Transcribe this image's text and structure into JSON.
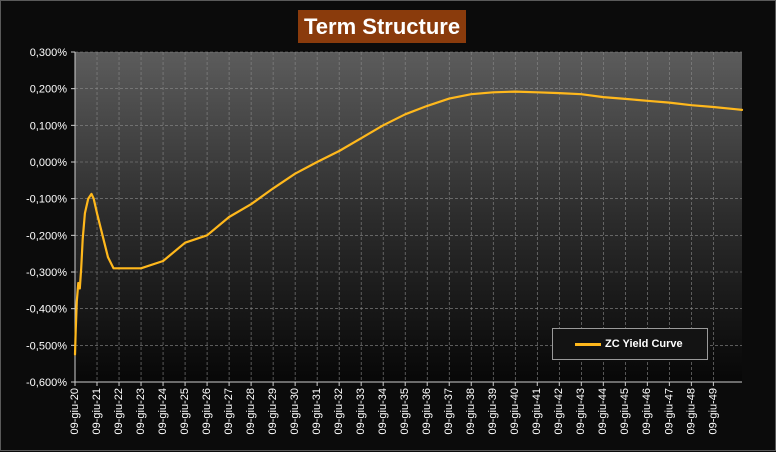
{
  "chart_data": {
    "type": "line",
    "title": "Term Structure",
    "y_ticks": [
      "0,300%",
      "0,200%",
      "0,100%",
      "0,000%",
      "-0,100%",
      "-0,200%",
      "-0,300%",
      "-0,400%",
      "-0,500%",
      "-0,600%"
    ],
    "ylim": [
      -0.6,
      0.3
    ],
    "x_ticks": [
      "09-giu-20",
      "09-giu-21",
      "09-giu-22",
      "09-giu-23",
      "09-giu-24",
      "09-giu-25",
      "09-giu-26",
      "09-giu-27",
      "09-giu-28",
      "09-giu-29",
      "09-giu-30",
      "09-giu-31",
      "09-giu-32",
      "09-giu-33",
      "09-giu-34",
      "09-giu-35",
      "09-giu-36",
      "09-giu-37",
      "09-giu-38",
      "09-giu-39",
      "09-giu-40",
      "09-giu-41",
      "09-giu-42",
      "09-giu-43",
      "09-giu-44",
      "09-giu-45",
      "09-giu-46",
      "09-giu-47",
      "09-giu-48",
      "09-giu-49"
    ],
    "xlim": [
      2020,
      2050.3
    ],
    "grid": true,
    "legend_position": "bottom-right",
    "series": [
      {
        "name": "ZC Yield Curve",
        "color": "#FFB81C",
        "x": [
          2020.0,
          2020.03,
          2020.08,
          2020.15,
          2020.22,
          2020.28,
          2020.35,
          2020.45,
          2020.6,
          2020.75,
          2020.85,
          2021.0,
          2021.25,
          2021.5,
          2021.75,
          2022.0,
          2023.0,
          2024.0,
          2025.0,
          2026.0,
          2027.0,
          2028.0,
          2029.0,
          2030.0,
          2031.0,
          2032.0,
          2033.0,
          2034.0,
          2035.0,
          2036.0,
          2037.0,
          2038.0,
          2039.0,
          2040.0,
          2041.0,
          2042.0,
          2043.0,
          2044.0,
          2045.0,
          2046.0,
          2047.0,
          2048.0,
          2049.0,
          2050.0,
          2050.3
        ],
        "y": [
          -0.525,
          -0.46,
          -0.38,
          -0.33,
          -0.345,
          -0.29,
          -0.21,
          -0.14,
          -0.1,
          -0.087,
          -0.1,
          -0.14,
          -0.2,
          -0.26,
          -0.29,
          -0.29,
          -0.29,
          -0.27,
          -0.22,
          -0.2,
          -0.15,
          -0.115,
          -0.072,
          -0.032,
          0.0,
          0.03,
          0.065,
          0.1,
          0.13,
          0.153,
          0.173,
          0.185,
          0.19,
          0.192,
          0.19,
          0.188,
          0.185,
          0.177,
          0.172,
          0.167,
          0.162,
          0.155,
          0.15,
          0.144,
          0.142
        ]
      }
    ]
  }
}
